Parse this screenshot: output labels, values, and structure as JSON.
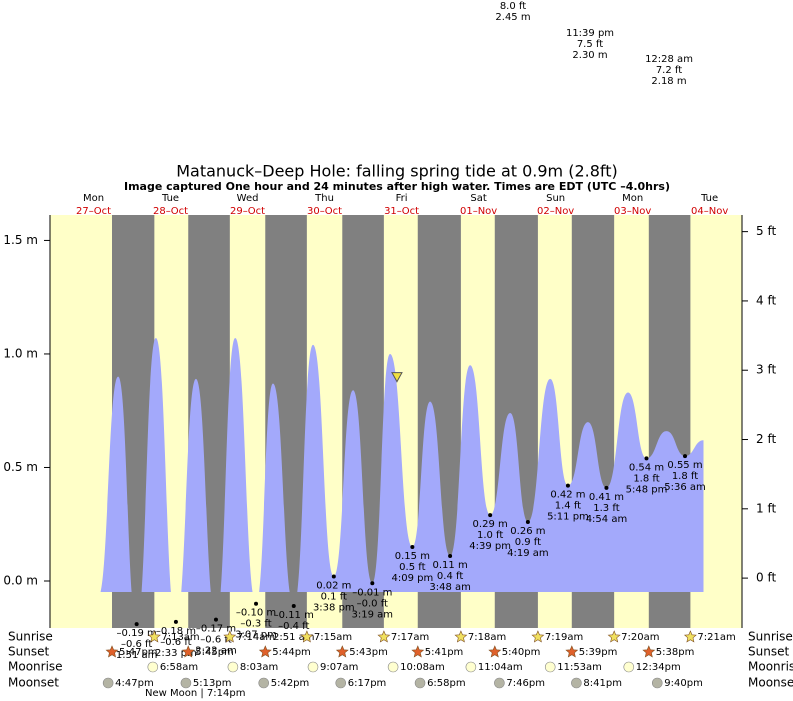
{
  "chart_data": {
    "type": "tide",
    "title": "Matanuck–Deep Hole: falling  spring tide at 0.9m (2.8ft)",
    "subtitle": "Image captured One hour and 24 minutes after high water. Times are EDT (UTC –4.0hrs)",
    "xlim": [
      -0.065,
      8.92
    ],
    "ylim": [
      -0.207,
      1.612
    ],
    "y2lim": [
      -0.72,
      5.24
    ],
    "yticks": [
      {
        "value": 0,
        "label": "0.0 m"
      },
      {
        "value": 0.5,
        "label": "0.5 m"
      },
      {
        "value": 1,
        "label": "1.0 m"
      },
      {
        "value": 1.5,
        "label": "1.5 m"
      }
    ],
    "y2ticks": [
      {
        "value": 0,
        "label": "0 ft"
      },
      {
        "value": 1,
        "label": "1 ft"
      },
      {
        "value": 2,
        "label": "2 ft"
      },
      {
        "value": 3,
        "label": "3 ft"
      },
      {
        "value": 4,
        "label": "4 ft"
      },
      {
        "value": 5,
        "label": "5 ft"
      }
    ],
    "days": {
      "x": [
        0.5,
        1.5,
        2.5,
        3.5,
        4.5,
        5.5,
        6.5,
        7.5,
        8.5
      ],
      "names": [
        "Mon",
        "Tue",
        "Wed",
        "Thu",
        "Fri",
        "Sat",
        "Sun",
        "Mon",
        "Tue"
      ],
      "dates": [
        "27–Oct",
        "28–Oct",
        "29–Oct",
        "30–Oct",
        "31–Oct",
        "01–Nov",
        "02–Nov",
        "03–Nov",
        "04–Nov"
      ]
    },
    "tide": {
      "color": "#a3a9fb",
      "x": [
        0.56,
        0.82,
        1.06,
        1.31,
        1.57,
        1.83,
        2.09,
        2.34,
        2.61,
        2.83,
        3.1,
        3.35,
        3.62,
        3.87,
        4.12,
        4.35,
        4.64,
        4.87,
        5.13,
        5.39,
        5.65,
        5.91,
        6.14,
        6.43,
        6.66,
        6.92,
        7.16,
        7.44,
        7.68,
        7.94,
        8.18,
        8.42
      ],
      "values": [
        -0.07,
        0.9,
        -0.19,
        1.07,
        -0.18,
        0.89,
        -0.17,
        1.07,
        -0.1,
        0.87,
        -0.11,
        1.04,
        0.02,
        0.84,
        -0.01,
        1.0,
        0.15,
        0.79,
        0.11,
        0.95,
        0.29,
        0.74,
        0.26,
        0.89,
        0.42,
        0.7,
        0.41,
        0.83,
        0.54,
        0.66,
        0.55,
        0.62
      ]
    },
    "lows": {
      "x": [
        1.06,
        1.57,
        2.09,
        2.61,
        3.1,
        3.62,
        4.12,
        4.64,
        5.13,
        5.65,
        6.14,
        6.66,
        7.16,
        7.68,
        8.18
      ],
      "values": [
        -0.19,
        -0.18,
        -0.17,
        -0.1,
        -0.11,
        0.02,
        -0.01,
        0.15,
        0.11,
        0.29,
        0.26,
        0.42,
        0.41,
        0.54,
        0.55
      ],
      "value_labels": [
        "–0.19 m",
        "–0.18 m",
        "–0.17 m",
        "–0.10 m",
        "–0.11 m",
        "0.02 m",
        "–0.01 m",
        "0.15 m",
        "0.11 m",
        "0.29 m",
        "0.26 m",
        "0.42 m",
        "0.41 m",
        "0.54 m",
        "0.55 m"
      ],
      "ft_labels": [
        "–0.6 ft",
        "–0.6 ft",
        "–0.6 ft",
        "–0.3 ft",
        "–0.4 ft",
        "0.1 ft",
        "–0.0 ft",
        "0.5 ft",
        "0.4 ft",
        "1.0 ft",
        "0.9 ft",
        "1.4 ft",
        "1.3 ft",
        "1.8 ft",
        "1.8 ft"
      ],
      "times": [
        "1:51 am",
        "2:33 pm",
        "2:22 am",
        "3:07 pm",
        "2:51 am",
        "3:38 pm",
        "3:19 am",
        "4:09 pm",
        "3:48 am",
        "4:39 pm",
        "4:19 am",
        "5:11 pm",
        "4:54 am",
        "5:48 pm",
        "5:36 am"
      ]
    },
    "now": {
      "x": 4.44,
      "value": 0.9
    },
    "rows": [
      {
        "label": "Sunrise",
        "x": [
          1.29,
          2.27,
          3.27,
          4.27,
          5.27,
          6.27,
          7.26,
          8.25
        ],
        "times": [
          "7:13am",
          "7:14am",
          "7:15am",
          "7:17am",
          "7:18am",
          "7:19am",
          "7:20am",
          "7:21am"
        ]
      },
      {
        "label": "Sunset",
        "x": [
          0.74,
          1.73,
          2.73,
          3.73,
          4.71,
          5.71,
          6.71,
          7.71
        ],
        "times": [
          "5:47pm",
          "5:45pm",
          "5:44pm",
          "5:43pm",
          "5:41pm",
          "5:40pm",
          "5:39pm",
          "5:38pm"
        ]
      },
      {
        "label": "Moonrise",
        "x": [
          1.27,
          2.31,
          3.35,
          4.39,
          5.4,
          6.43,
          7.45
        ],
        "times": [
          "6:58am",
          "8:03am",
          "9:07am",
          "10:08am",
          "11:04am",
          "11:53am",
          "12:34pm"
        ]
      },
      {
        "label": "Moonset",
        "x": [
          0.69,
          1.7,
          2.71,
          3.71,
          4.74,
          5.77,
          6.77,
          7.82
        ],
        "times": [
          "4:47pm",
          "5:13pm",
          "5:42pm",
          "6:17pm",
          "6:58pm",
          "7:46pm",
          "8:41pm",
          "9:40pm"
        ]
      }
    ],
    "moon_phase": "New Moon | 7:14pm",
    "top_highs": [
      {
        "lines": [
          "8.0 ft",
          "2.45 m"
        ]
      },
      {
        "lines": [
          "11:39 pm",
          "7.5 ft",
          "2.30 m"
        ]
      },
      {
        "lines": [
          "12:28 am",
          "7.2 ft",
          "2.18 m"
        ]
      }
    ]
  }
}
